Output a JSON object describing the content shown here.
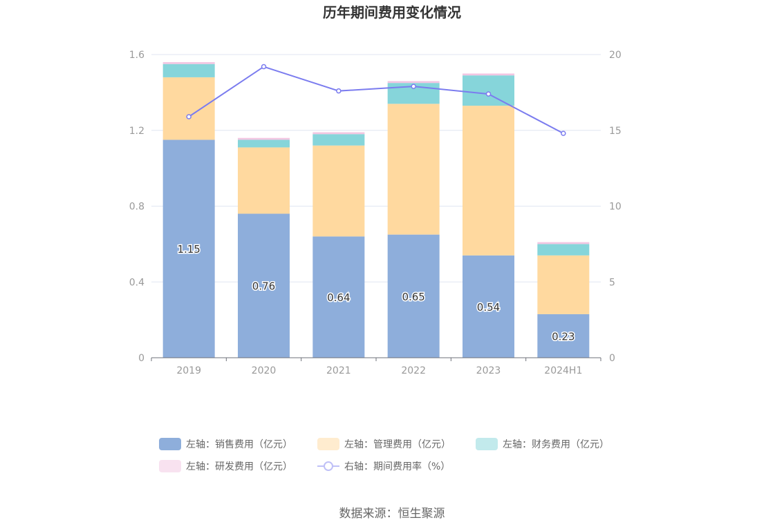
{
  "chart_data": {
    "type": "bar",
    "title": "历年期间费用变化情况",
    "categories": [
      "2019",
      "2020",
      "2021",
      "2022",
      "2023",
      "2024H1"
    ],
    "series": [
      {
        "name": "左轴：销售费用（亿元）",
        "axis": "left",
        "kind": "bar",
        "color": "#8eaedb",
        "values": [
          1.15,
          0.76,
          0.64,
          0.65,
          0.54,
          0.23
        ]
      },
      {
        "name": "左轴：管理费用（亿元）",
        "axis": "left",
        "kind": "bar",
        "color": "#ffd99f",
        "values": [
          0.33,
          0.35,
          0.48,
          0.69,
          0.79,
          0.31
        ]
      },
      {
        "name": "左轴：财务费用（亿元）",
        "axis": "left",
        "kind": "bar",
        "color": "#86d5da",
        "values": [
          0.07,
          0.04,
          0.06,
          0.11,
          0.16,
          0.06
        ]
      },
      {
        "name": "左轴：研发费用（亿元）",
        "axis": "left",
        "kind": "bar",
        "color": "#f2c6e2",
        "values": [
          0.01,
          0.01,
          0.01,
          0.01,
          0.01,
          0.01
        ]
      },
      {
        "name": "右轴：期间费用率（%）",
        "axis": "right",
        "kind": "line",
        "color": "#7b7cef",
        "values": [
          15.9,
          19.2,
          17.6,
          17.9,
          17.4,
          14.8
        ]
      }
    ],
    "bar_labels": [
      "1.15",
      "0.76",
      "0.64",
      "0.65",
      "0.54",
      "0.23"
    ],
    "left_axis": {
      "min": 0,
      "max": 1.6,
      "ticks": [
        "0",
        "0.4",
        "0.8",
        "1.2",
        "1.6"
      ]
    },
    "right_axis": {
      "min": 0,
      "max": 20,
      "ticks": [
        "0",
        "5",
        "10",
        "15",
        "20"
      ]
    },
    "grid": true,
    "legend_position": "bottom"
  },
  "source": "数据来源：恒生聚源"
}
